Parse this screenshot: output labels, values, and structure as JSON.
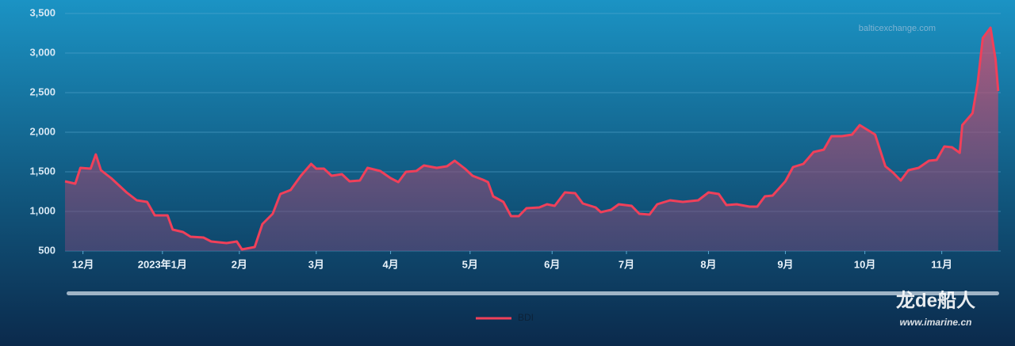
{
  "chart_data": {
    "type": "line",
    "annotation": "balticexchange.com",
    "watermark": "龙de船人",
    "watermark_url": "www.imarine.cn",
    "x": [
      0,
      4,
      6,
      10,
      12,
      14,
      18,
      24,
      28,
      32,
      35,
      40,
      42,
      46,
      49,
      54,
      57,
      63,
      67,
      69,
      74,
      77,
      81,
      84,
      88,
      92,
      96,
      98,
      101,
      104,
      108,
      111,
      115,
      118,
      123,
      127,
      130,
      133,
      137,
      140,
      145,
      149,
      152,
      156,
      159,
      163,
      165,
      167,
      171,
      174,
      177,
      180,
      185,
      188,
      191,
      195,
      199,
      202,
      207,
      209,
      213,
      216,
      221,
      224,
      228,
      231,
      236,
      241,
      247,
      251,
      255,
      258,
      262,
      267,
      270,
      273,
      276,
      281,
      284,
      288,
      292,
      296,
      299,
      303,
      307,
      310,
      313,
      316,
      320,
      323,
      326,
      329,
      333,
      337,
      340,
      343,
      346,
      349,
      350,
      354,
      356,
      358,
      361,
      363,
      364
    ],
    "series": [
      {
        "name": "BDI",
        "color": "#f0405a",
        "values": [
          1380,
          1350,
          1550,
          1540,
          1720,
          1520,
          1420,
          1240,
          1140,
          1120,
          950,
          950,
          770,
          740,
          680,
          670,
          620,
          600,
          620,
          520,
          550,
          840,
          970,
          1220,
          1270,
          1450,
          1600,
          1540,
          1540,
          1450,
          1470,
          1380,
          1390,
          1550,
          1510,
          1420,
          1370,
          1500,
          1510,
          1580,
          1550,
          1570,
          1640,
          1540,
          1450,
          1400,
          1370,
          1190,
          1120,
          940,
          940,
          1040,
          1050,
          1090,
          1070,
          1240,
          1230,
          1100,
          1050,
          990,
          1020,
          1090,
          1070,
          970,
          960,
          1090,
          1140,
          1120,
          1140,
          1240,
          1220,
          1080,
          1090,
          1060,
          1060,
          1190,
          1200,
          1380,
          1560,
          1600,
          1750,
          1780,
          1950,
          1950,
          1970,
          2090,
          2030,
          1970,
          1570,
          1490,
          1390,
          1520,
          1550,
          1640,
          1650,
          1820,
          1810,
          1740,
          2090,
          2240,
          2620,
          3190,
          3320,
          2920,
          2520
        ]
      }
    ],
    "xlim": [
      0,
      365
    ],
    "xticks": [
      {
        "value": 7,
        "label": "12月"
      },
      {
        "value": 38,
        "label": "2023年1月"
      },
      {
        "value": 68,
        "label": "2月"
      },
      {
        "value": 98,
        "label": "3月"
      },
      {
        "value": 127,
        "label": "4月"
      },
      {
        "value": 158,
        "label": "5月"
      },
      {
        "value": 190,
        "label": "6月"
      },
      {
        "value": 219,
        "label": "7月"
      },
      {
        "value": 251,
        "label": "8月"
      },
      {
        "value": 281,
        "label": "9月"
      },
      {
        "value": 312,
        "label": "10月"
      },
      {
        "value": 342,
        "label": "11月"
      }
    ],
    "ylim": [
      500,
      3500
    ],
    "yticks": [
      500,
      {
        "value": 1000,
        "label": "1,000"
      },
      {
        "value": 1500,
        "label": "1,500"
      },
      {
        "value": 2000,
        "label": "2,000"
      },
      {
        "value": 2500,
        "label": "2,500"
      },
      {
        "value": 3000,
        "label": "3,000"
      },
      {
        "value": 3500,
        "label": "3,500"
      }
    ],
    "grid": true
  }
}
